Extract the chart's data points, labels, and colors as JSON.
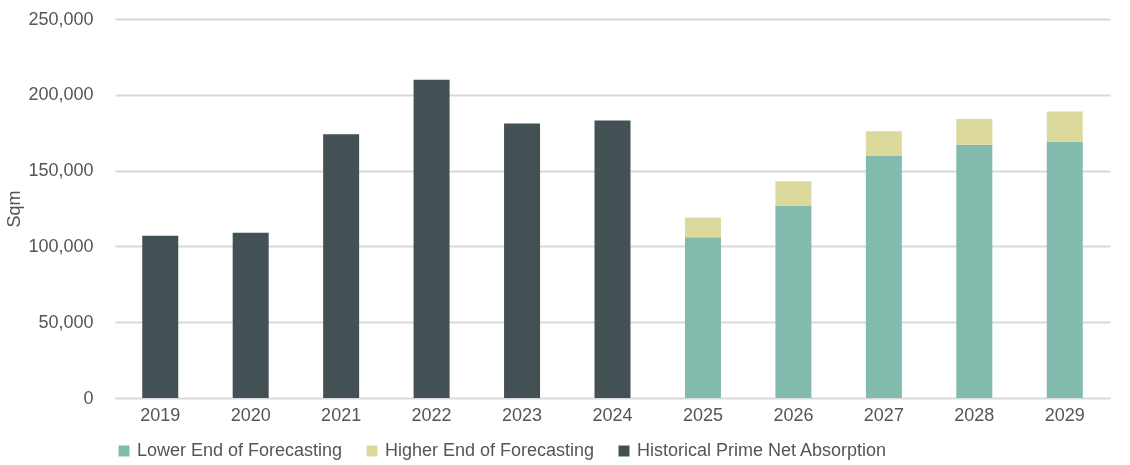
{
  "chart_data": {
    "type": "bar",
    "stacked": true,
    "ylabel": "Sqm",
    "categories": [
      "2019",
      "2020",
      "2021",
      "2022",
      "2023",
      "2024",
      "2025",
      "2026",
      "2027",
      "2028",
      "2029"
    ],
    "series": [
      {
        "name": "Lower End of Forecasting",
        "color": "#82bbad",
        "values": [
          null,
          null,
          null,
          null,
          null,
          null,
          106000,
          127000,
          160000,
          167000,
          169000
        ]
      },
      {
        "name": "Higher End of Forecasting",
        "color": "#dcd99d",
        "values": [
          null,
          null,
          null,
          null,
          null,
          null,
          13000,
          16000,
          16000,
          17000,
          20000
        ]
      },
      {
        "name": "Historical Prime Net Absorption",
        "color": "#435155",
        "values": [
          107000,
          109000,
          174000,
          210000,
          181000,
          183000,
          null,
          null,
          null,
          null,
          null
        ]
      }
    ],
    "ylim": [
      0,
      250000
    ],
    "yticks": [
      0,
      {
        "value": 50000,
        "label": "50,000"
      },
      {
        "value": 100000,
        "label": "100,000"
      },
      {
        "value": 150000,
        "label": "150,000"
      },
      {
        "value": 200000,
        "label": "200,000"
      },
      {
        "value": 250000,
        "label": "250,000"
      }
    ],
    "grid": "y",
    "legend": "bottom"
  }
}
